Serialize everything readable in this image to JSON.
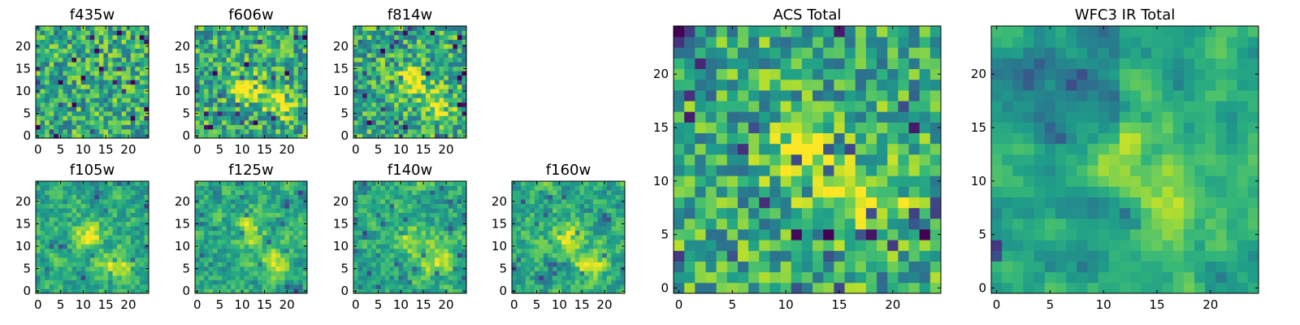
{
  "chart_data": [
    {
      "type": "heatmap",
      "title": "f435w",
      "colormap": "viridis",
      "xlim": [
        0,
        24
      ],
      "ylim": [
        0,
        24
      ],
      "xticks": [
        0,
        5,
        10,
        15,
        20
      ],
      "yticks": [
        0,
        5,
        10,
        15,
        20
      ],
      "grid": false,
      "hotspots": []
    },
    {
      "type": "heatmap",
      "title": "f606w",
      "colormap": "viridis",
      "xlim": [
        0,
        24
      ],
      "ylim": [
        0,
        24
      ],
      "xticks": [
        0,
        5,
        10,
        15,
        20
      ],
      "yticks": [
        0,
        5,
        10,
        15,
        20
      ],
      "grid": false,
      "hotspots": [
        [
          18,
          7
        ],
        [
          11,
          11
        ]
      ]
    },
    {
      "type": "heatmap",
      "title": "f814w",
      "colormap": "viridis",
      "xlim": [
        0,
        24
      ],
      "ylim": [
        0,
        24
      ],
      "xticks": [
        0,
        5,
        10,
        15,
        20
      ],
      "yticks": [
        0,
        5,
        10,
        15,
        20
      ],
      "grid": false,
      "hotspots": [
        [
          18,
          7
        ],
        [
          12,
          12
        ]
      ]
    },
    {
      "type": "heatmap",
      "title": "f105w",
      "colormap": "viridis",
      "xlim": [
        0,
        24
      ],
      "ylim": [
        0,
        24
      ],
      "xticks": [
        0,
        5,
        10,
        15,
        20
      ],
      "yticks": [
        0,
        5,
        10,
        15,
        20
      ],
      "grid": false,
      "hotspots": [
        [
          17,
          6
        ],
        [
          11,
          12
        ]
      ]
    },
    {
      "type": "heatmap",
      "title": "f125w",
      "colormap": "viridis",
      "xlim": [
        0,
        24
      ],
      "ylim": [
        0,
        24
      ],
      "xticks": [
        0,
        5,
        10,
        15,
        20
      ],
      "yticks": [
        0,
        5,
        10,
        15,
        20
      ],
      "grid": false,
      "hotspots": [
        [
          17,
          6
        ],
        [
          12,
          13
        ]
      ]
    },
    {
      "type": "heatmap",
      "title": "f140w",
      "colormap": "viridis",
      "xlim": [
        0,
        24
      ],
      "ylim": [
        0,
        24
      ],
      "xticks": [
        0,
        5,
        10,
        15,
        20
      ],
      "yticks": [
        0,
        5,
        10,
        15,
        20
      ],
      "grid": false,
      "hotspots": [
        [
          18,
          7
        ],
        [
          12,
          12
        ]
      ]
    },
    {
      "type": "heatmap",
      "title": "f160w",
      "colormap": "viridis",
      "xlim": [
        0,
        24
      ],
      "ylim": [
        0,
        24
      ],
      "xticks": [
        0,
        5,
        10,
        15,
        20
      ],
      "yticks": [
        0,
        5,
        10,
        15,
        20
      ],
      "grid": false,
      "hotspots": [
        [
          17,
          6
        ],
        [
          12,
          12
        ]
      ]
    },
    {
      "type": "heatmap",
      "title": "ACS Total",
      "colormap": "viridis",
      "xlim": [
        0,
        24
      ],
      "ylim": [
        0,
        24
      ],
      "xticks": [
        0,
        5,
        10,
        15,
        20
      ],
      "yticks": [
        0,
        5,
        10,
        15,
        20
      ],
      "grid": false,
      "hotspots": [
        [
          18,
          8
        ],
        [
          12,
          12
        ]
      ]
    },
    {
      "type": "heatmap",
      "title": "WFC3 IR Total",
      "colormap": "viridis",
      "xlim": [
        0,
        24
      ],
      "ylim": [
        0,
        24
      ],
      "xticks": [
        0,
        5,
        10,
        15,
        20
      ],
      "yticks": [
        0,
        5,
        10,
        15,
        20
      ],
      "grid": false,
      "hotspots": [
        [
          17,
          7
        ],
        [
          12,
          13
        ]
      ]
    }
  ]
}
